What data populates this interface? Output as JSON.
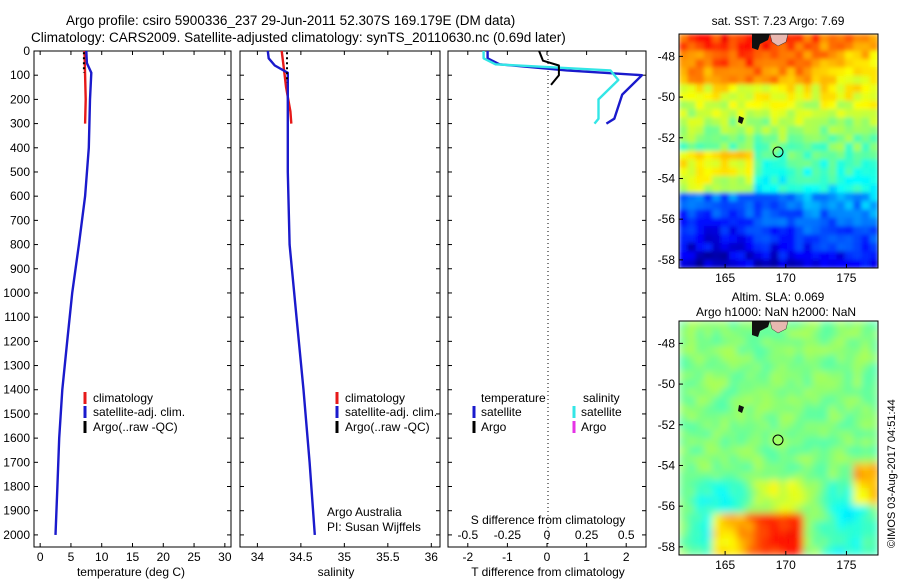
{
  "title": {
    "line1": "Argo profile: csiro 5900336_237 29-Jun-2011 52.307S 169.179E (DM data)",
    "line2": "Climatology: CARS2009. Satellite-adjusted climatology: synTS_20110630.nc (0.69d later)"
  },
  "credit": "©IMOS 03-Aug-2017 04:51:44",
  "colors": {
    "red": "#e61919",
    "blue": "#1a1acc",
    "black": "#000000",
    "cyan": "#33e6e6",
    "magenta": "#e633e6"
  },
  "chart_data": [
    {
      "type": "line",
      "name": "temperature-panel",
      "xlabel": "temperature (deg C)",
      "ylabel": "",
      "xlim": [
        -1,
        31
      ],
      "ylim": [
        2050,
        0
      ],
      "xticks": [
        0,
        5,
        10,
        15,
        20,
        25,
        30
      ],
      "yticks": [
        0,
        100,
        200,
        300,
        400,
        500,
        600,
        700,
        800,
        900,
        1000,
        1100,
        1200,
        1300,
        1400,
        1500,
        1600,
        1700,
        1800,
        1900,
        2000
      ],
      "series": [
        {
          "name": "climatology",
          "color": "red",
          "points": [
            [
              7.2,
              0
            ],
            [
              7.3,
              100
            ],
            [
              7.4,
              200
            ],
            [
              7.3,
              300
            ]
          ]
        },
        {
          "name": "satellite-adj. clim.",
          "color": "blue",
          "points": [
            [
              7.5,
              0
            ],
            [
              7.6,
              50
            ],
            [
              8.3,
              90
            ],
            [
              8.1,
              200
            ],
            [
              7.9,
              400
            ],
            [
              7.3,
              600
            ],
            [
              6.3,
              800
            ],
            [
              5.2,
              1000
            ],
            [
              4.4,
              1200
            ],
            [
              3.6,
              1400
            ],
            [
              3.1,
              1600
            ],
            [
              2.8,
              1800
            ],
            [
              2.5,
              2000
            ]
          ]
        },
        {
          "name": "Argo(..raw -QC)",
          "color": "black",
          "dashed": true,
          "points": [
            [
              7.1,
              5
            ],
            [
              7.1,
              30
            ],
            [
              7.1,
              60
            ],
            [
              7.1,
              90
            ]
          ]
        }
      ],
      "legend": {
        "position": "lower-right",
        "entries": [
          "climatology",
          "satellite-adj. clim.",
          "Argo(..raw -QC)"
        ]
      }
    },
    {
      "type": "line",
      "name": "salinity-panel",
      "xlabel": "salinity",
      "xlim": [
        33.8,
        36.1
      ],
      "ylim": [
        2050,
        0
      ],
      "xticks": [
        34,
        34.5,
        35,
        35.5,
        36
      ],
      "series": [
        {
          "name": "climatology",
          "color": "red",
          "points": [
            [
              34.28,
              0
            ],
            [
              34.3,
              60
            ],
            [
              34.33,
              150
            ],
            [
              34.38,
              250
            ],
            [
              34.39,
              300
            ]
          ]
        },
        {
          "name": "satellite-adj. clim.",
          "color": "blue",
          "points": [
            [
              34.12,
              0
            ],
            [
              34.13,
              30
            ],
            [
              34.2,
              60
            ],
            [
              34.35,
              90
            ],
            [
              34.35,
              200
            ],
            [
              34.35,
              500
            ],
            [
              34.37,
              800
            ],
            [
              34.45,
              1100
            ],
            [
              34.53,
              1400
            ],
            [
              34.6,
              1700
            ],
            [
              34.66,
              2000
            ]
          ]
        },
        {
          "name": "Argo(..raw -QC)",
          "color": "black",
          "dashed": true,
          "points": [
            [
              34.34,
              5
            ],
            [
              34.34,
              40
            ],
            [
              34.34,
              80
            ],
            [
              34.34,
              130
            ]
          ]
        }
      ],
      "legend": {
        "position": "lower-right",
        "entries": [
          "climatology",
          "satellite-adj. clim.",
          "Argo(..raw -QC)"
        ]
      },
      "annotation": [
        "Argo Australia",
        "PI: Susan Wijffels"
      ]
    },
    {
      "type": "line",
      "name": "difference-panel",
      "xlabel": "T difference from climatology",
      "xlabel_top": "S difference from climatology",
      "xlim": [
        -2.5,
        2.5
      ],
      "ylim": [
        2050,
        0
      ],
      "xticks": [
        -2,
        -1,
        0,
        1,
        2
      ],
      "xticks_s": [
        -0.5,
        -0.25,
        0,
        0.25,
        0.5
      ],
      "zero_line": "dotted",
      "series": [
        {
          "name": "temperature satellite",
          "color": "blue",
          "points": [
            [
              -1.5,
              0
            ],
            [
              -1.5,
              30
            ],
            [
              -1.2,
              55
            ],
            [
              0.5,
              80
            ],
            [
              2.4,
              100
            ],
            [
              1.9,
              180
            ],
            [
              1.7,
              280
            ],
            [
              1.5,
              300
            ]
          ]
        },
        {
          "name": "salinity satellite",
          "color": "cyan",
          "points": [
            [
              -1.6,
              0
            ],
            [
              -1.6,
              30
            ],
            [
              -1.3,
              55
            ],
            [
              1.6,
              80
            ],
            [
              1.8,
              120
            ],
            [
              1.3,
              200
            ],
            [
              1.3,
              280
            ],
            [
              1.2,
              300
            ]
          ]
        },
        {
          "name": "temperature Argo",
          "color": "black",
          "points": [
            [
              -0.2,
              0
            ],
            [
              -0.1,
              40
            ],
            [
              0.3,
              60
            ],
            [
              0.3,
              100
            ],
            [
              0.1,
              140
            ]
          ]
        }
      ],
      "legend": {
        "headers": [
          "temperature",
          "salinity"
        ],
        "entries": [
          [
            "satellite",
            "satellite"
          ],
          [
            "Argo",
            "Argo"
          ]
        ]
      }
    },
    {
      "type": "heatmap",
      "name": "sst-map",
      "title": "sat. SST: 7.23 Argo: 7.69",
      "xlim": [
        161.2,
        177.6
      ],
      "ylim": [
        -58.4,
        -46.9
      ],
      "xticks": [
        165,
        170,
        175
      ],
      "yticks": [
        -48,
        -50,
        -52,
        -54,
        -56,
        -58
      ],
      "argo_position": {
        "lon": 169.179,
        "lat": -52.307
      },
      "colormap": "jet"
    },
    {
      "type": "heatmap",
      "name": "sla-map",
      "title": "Altim. SLA: 0.069",
      "subtitle": "Argo h1000: NaN h2000: NaN",
      "xlim": [
        161.2,
        177.6
      ],
      "ylim": [
        -58.4,
        -46.9
      ],
      "xticks": [
        165,
        170,
        175
      ],
      "yticks": [
        -48,
        -50,
        -52,
        -54,
        -56,
        -58
      ],
      "argo_position": {
        "lon": 169.179,
        "lat": -52.307
      },
      "colormap": "jet"
    }
  ]
}
